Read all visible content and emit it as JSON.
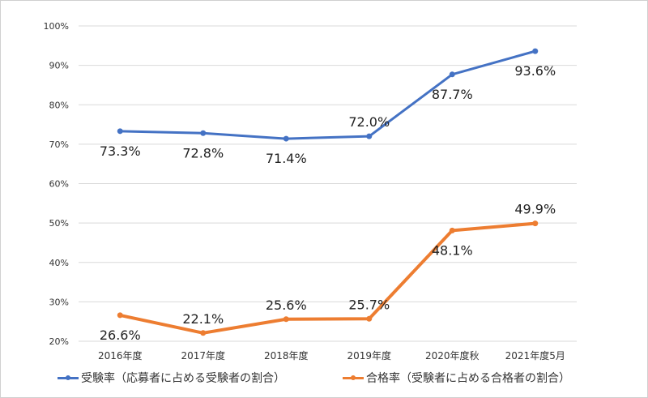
{
  "chart_data": {
    "type": "line",
    "categories": [
      "2016年度",
      "2017年度",
      "2018年度",
      "2019年度",
      "2020年度秋",
      "2021年度5月"
    ],
    "ylim": [
      20,
      100
    ],
    "yticks": [
      "20%",
      "30%",
      "40%",
      "50%",
      "60%",
      "70%",
      "80%",
      "90%",
      "100%"
    ],
    "grid": true,
    "legend_position": "bottom",
    "series": [
      {
        "name": "受験率（応募者に占める受験者の割合）",
        "color": "#4472c4",
        "values": [
          73.3,
          72.8,
          71.4,
          72.0,
          87.7,
          93.6
        ],
        "labels": [
          "73.3%",
          "72.8%",
          "71.4%",
          "72.0%",
          "87.7%",
          "93.6%"
        ]
      },
      {
        "name": "合格率（受験者に占める合格者の割合）",
        "color": "#ed7d31",
        "values": [
          26.6,
          22.1,
          25.6,
          25.7,
          48.1,
          49.9
        ],
        "labels": [
          "26.6%",
          "22.1%",
          "25.6%",
          "25.7%",
          "48.1%",
          "49.9%"
        ]
      }
    ]
  }
}
